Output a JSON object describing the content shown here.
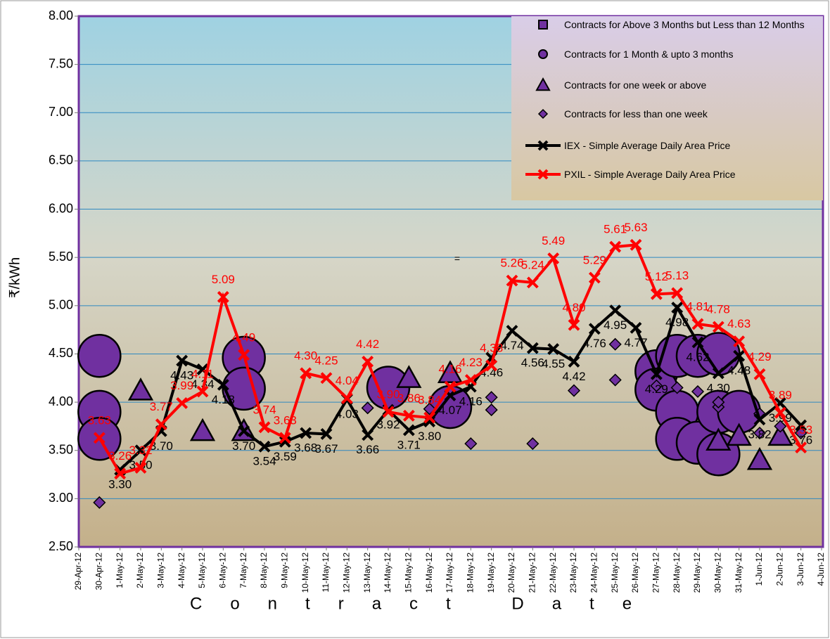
{
  "chart_data": {
    "type": "line",
    "y_label": "₹/kWh",
    "x_label": "Contract Date",
    "annotation": "=",
    "categories": [
      "29-Apr-12",
      "30-Apr-12",
      "1-May-12",
      "2-May-12",
      "3-May-12",
      "4-May-12",
      "5-May-12",
      "6-May-12",
      "7-May-12",
      "8-May-12",
      "9-May-12",
      "10-May-12",
      "11-May-12",
      "12-May-12",
      "13-May-12",
      "14-May-12",
      "15-May-12",
      "16-May-12",
      "17-May-12",
      "18-May-12",
      "19-May-12",
      "20-May-12",
      "21-May-12",
      "22-May-12",
      "23-May-12",
      "24-May-12",
      "25-May-12",
      "26-May-12",
      "27-May-12",
      "28-May-12",
      "29-May-12",
      "30-May-12",
      "31-May-12",
      "1-Jun-12",
      "2-Jun-12",
      "3-Jun-12",
      "4-Jun-12"
    ],
    "ylim": [
      2.5,
      8
    ],
    "yticks": [
      {
        "value": 2.5,
        "label": "2.50"
      },
      {
        "value": 3,
        "label": "3.00"
      },
      {
        "value": 3.5,
        "label": "3.50"
      },
      {
        "value": 4,
        "label": "4.00"
      },
      {
        "value": 4.5,
        "label": "4.50"
      },
      {
        "value": 5,
        "label": "5.00"
      },
      {
        "value": 5.5,
        "label": "5.50"
      },
      {
        "value": 6,
        "label": "6.00"
      },
      {
        "value": 6.5,
        "label": "6.50"
      },
      {
        "value": 7,
        "label": "7.00"
      },
      {
        "value": 7.5,
        "label": "7.50"
      },
      {
        "value": 8,
        "label": "8.00"
      }
    ],
    "grid": true,
    "series": [
      {
        "name": "Contracts for Above 3 Months but Less than 12 Months",
        "type": "scatter",
        "marker": "square",
        "color": "#7030a0",
        "x": [],
        "values": []
      },
      {
        "name": "Contracts for 1 Month & upto 3 months",
        "type": "scatter",
        "marker": "circle",
        "color": "#7030a0",
        "x": [
          "30-Apr-12",
          "30-Apr-12",
          "30-Apr-12",
          "7-May-12",
          "7-May-12",
          "14-May-12",
          "17-May-12",
          "27-May-12",
          "27-May-12",
          "28-May-12",
          "28-May-12",
          "28-May-12",
          "29-May-12",
          "29-May-12",
          "30-May-12",
          "30-May-12",
          "30-May-12",
          "31-May-12"
        ],
        "values": [
          4.48,
          3.9,
          3.62,
          4.46,
          4.14,
          4.15,
          3.95,
          4.32,
          4.13,
          4.48,
          3.9,
          3.62,
          4.48,
          3.58,
          4.5,
          3.9,
          3.46,
          3.9
        ]
      },
      {
        "name": "Contracts for one week or above",
        "type": "scatter",
        "marker": "triangle",
        "color": "#7030a0",
        "x": [
          "2-May-12",
          "5-May-12",
          "7-May-12",
          "15-May-12",
          "17-May-12",
          "30-May-12",
          "31-May-12",
          "1-Jun-12",
          "2-Jun-12"
        ],
        "values": [
          4.12,
          3.7,
          3.7,
          4.25,
          4.3,
          3.6,
          3.65,
          3.4,
          3.65
        ]
      },
      {
        "name": "Contracts for less than one week",
        "type": "scatter",
        "marker": "diamond",
        "color": "#7030a0",
        "x": [
          "30-Apr-12",
          "13-May-12",
          "16-May-12",
          "18-May-12",
          "19-May-12",
          "19-May-12",
          "21-May-12",
          "23-May-12",
          "25-May-12",
          "25-May-12",
          "27-May-12",
          "28-May-12",
          "29-May-12",
          "30-May-12",
          "30-May-12",
          "1-Jun-12",
          "1-Jun-12",
          "2-Jun-12",
          "3-Jun-12"
        ],
        "values": [
          2.96,
          3.94,
          3.93,
          3.57,
          4.05,
          3.92,
          3.57,
          4.12,
          4.6,
          4.23,
          4.17,
          4.15,
          4.11,
          3.95,
          4.0,
          3.88,
          3.68,
          3.75,
          3.68
        ]
      },
      {
        "name": "IEX - Simple Average Daily Area Price",
        "type": "line",
        "color": "#000000",
        "values": [
          null,
          null,
          3.3,
          3.5,
          3.7,
          4.43,
          4.34,
          4.18,
          3.7,
          3.54,
          3.59,
          3.68,
          3.67,
          4.03,
          3.66,
          3.92,
          3.71,
          3.8,
          4.07,
          4.16,
          4.46,
          4.74,
          4.56,
          4.55,
          4.42,
          4.76,
          4.95,
          4.77,
          4.29,
          4.98,
          4.62,
          4.3,
          4.48,
          3.82,
          3.99,
          3.76,
          null
        ],
        "value_labels": [
          null,
          null,
          "3.30",
          "3.50",
          "3.70",
          "4.43",
          "4.34",
          "4.18",
          "3.70",
          "3.54",
          "3.59",
          "3.68",
          "3.67",
          "4.03",
          "3.66",
          "3.92",
          "3.71",
          "3.80",
          "4.07",
          "4.16",
          "4.46",
          "4.74",
          "4.56",
          "4.55",
          "4.42",
          "4.76",
          "4.95",
          "4.77",
          "4.29",
          "4.98",
          "4.62",
          "4.30",
          "4.48",
          "3.82",
          "3.99",
          "3.76",
          null
        ]
      },
      {
        "name": "PXIL - Simple Average Daily Area Price",
        "type": "line",
        "color": "#ff0000",
        "values": [
          null,
          3.63,
          3.26,
          3.32,
          3.77,
          3.99,
          4.11,
          5.09,
          4.49,
          3.74,
          3.63,
          4.3,
          4.25,
          4.04,
          4.42,
          3.9,
          3.86,
          3.84,
          4.16,
          4.23,
          4.38,
          5.26,
          5.24,
          5.49,
          4.8,
          5.29,
          5.61,
          5.63,
          5.12,
          5.13,
          4.81,
          4.78,
          4.63,
          4.29,
          3.89,
          3.53,
          null
        ],
        "value_labels": [
          null,
          "3.63",
          "3.26",
          "3.32",
          "3.77",
          "3.99",
          "4.11",
          "5.09",
          "4.49",
          "3.74",
          "3.63",
          "4.30",
          "4.25",
          "4.04",
          "4.42",
          "3.90",
          "3.86",
          "3.84",
          "4.16",
          "4.23",
          "4.38",
          "5.26",
          "5.24",
          "5.49",
          "4.80",
          "5.29",
          "5.61",
          "5.63",
          "5.12",
          "5.13",
          "4.81",
          "4.78",
          "4.63",
          "4.29",
          "3.89",
          "3.53",
          null
        ]
      }
    ]
  }
}
